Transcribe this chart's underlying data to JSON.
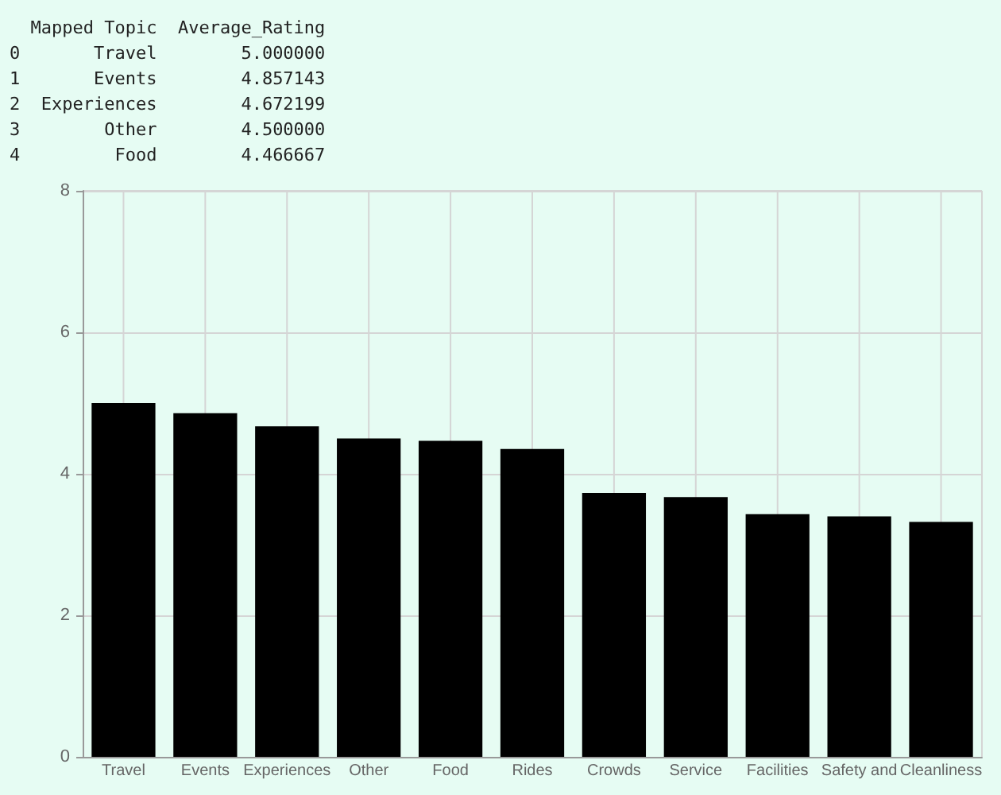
{
  "chart_data": {
    "type": "bar",
    "annotations": [
      "  Mapped Topic  Average_Rating",
      "0       Travel        5.000000",
      "1       Events        4.857143",
      "2  Experiences        4.672199",
      "3        Other        4.500000",
      "4         Food        4.466667"
    ],
    "categories": [
      "Travel",
      "Events",
      "Experiences",
      "Other",
      "Food",
      "Rides",
      "Crowds",
      "Service",
      "Facilities",
      "Safety and",
      "Cleanliness"
    ],
    "values": [
      5.0,
      4.857143,
      4.672199,
      4.5,
      4.466667,
      4.35,
      3.73,
      3.67,
      3.43,
      3.4,
      3.32
    ],
    "color": "#000000",
    "ylim": [
      0,
      8
    ],
    "yticks": [
      0,
      2,
      4,
      6,
      8
    ],
    "grid": true
  }
}
